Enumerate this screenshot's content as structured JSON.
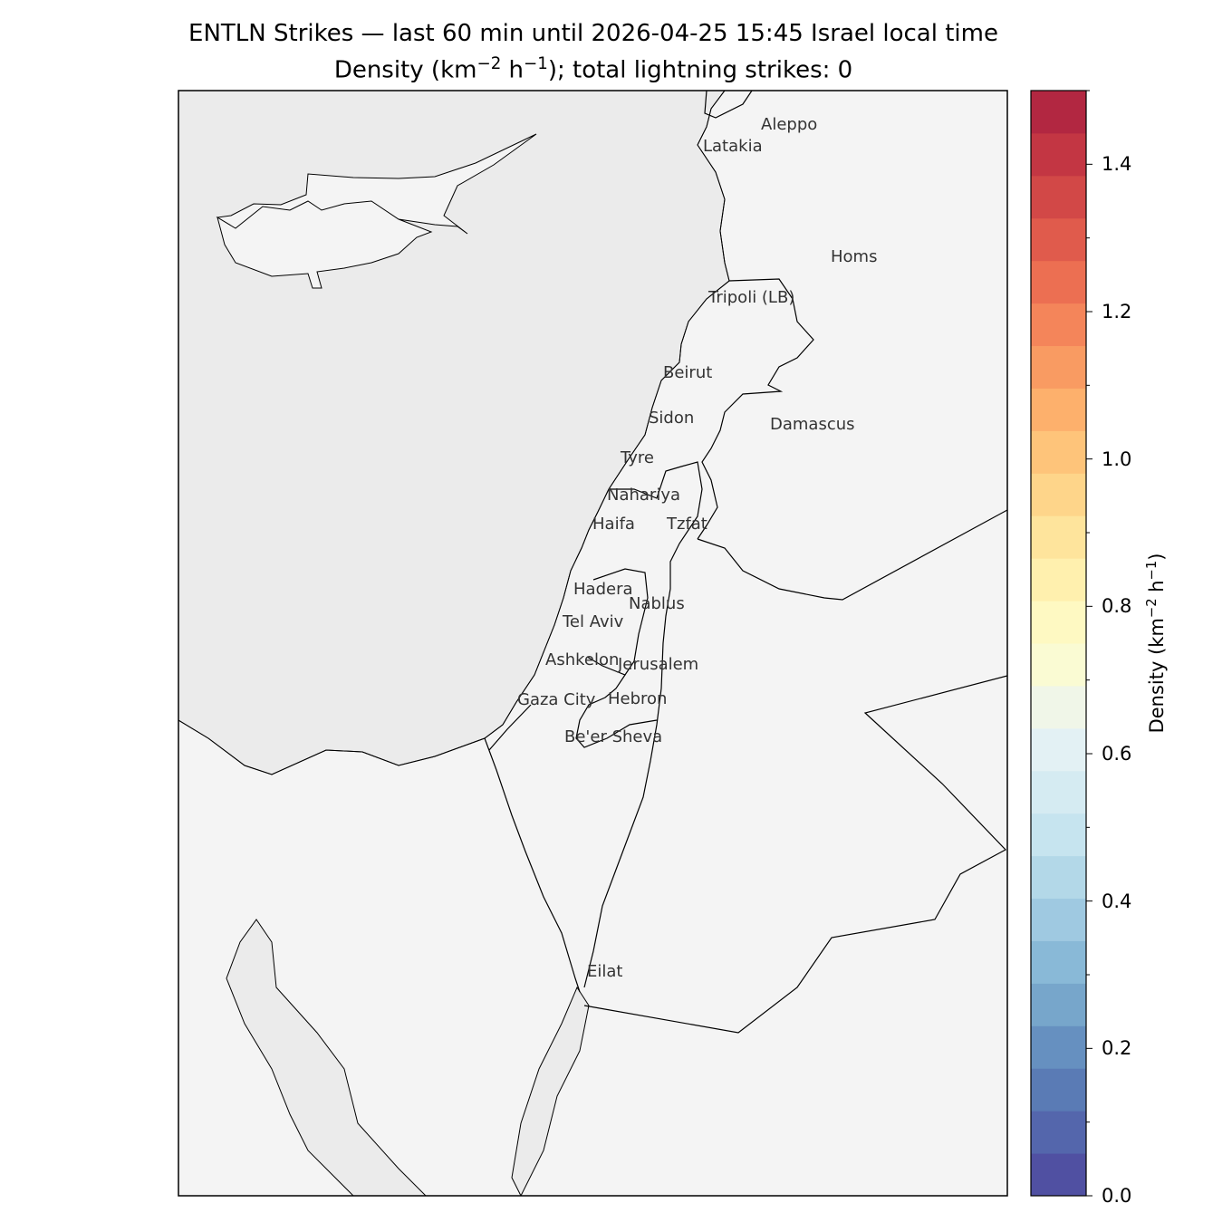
{
  "title": {
    "line1": "ENTLN Strikes — last 60 min until 2026-04-25 15:45 Israel local time",
    "line2_prefix": "Density (km",
    "line2_exp1": "−2",
    "line2_mid": " h",
    "line2_exp2": "−1",
    "line2_suffix": "); total lightning strikes: 0"
  },
  "colors": {
    "sea": "#ebebeb",
    "land": "#f4f4f4",
    "border": "#000000",
    "city_text": "#333333"
  },
  "cities": [
    {
      "name": "Aleppo"
    },
    {
      "name": "Latakia"
    },
    {
      "name": "Homs"
    },
    {
      "name": "Tripoli (LB)"
    },
    {
      "name": "Beirut"
    },
    {
      "name": "Sidon"
    },
    {
      "name": "Damascus"
    },
    {
      "name": "Tyre"
    },
    {
      "name": "Nahariya"
    },
    {
      "name": "Haifa"
    },
    {
      "name": "Tzfat"
    },
    {
      "name": "Hadera"
    },
    {
      "name": "Nablus"
    },
    {
      "name": "Tel Aviv"
    },
    {
      "name": "Ashkelon"
    },
    {
      "name": "Jerusalem"
    },
    {
      "name": "Gaza City"
    },
    {
      "name": "Hebron"
    },
    {
      "name": "Be'er Sheva"
    },
    {
      "name": "Eilat"
    }
  ],
  "colorbar": {
    "label_prefix": "Density (km",
    "label_exp1": "−2",
    "label_mid": " h",
    "label_exp2": "−1",
    "label_suffix": ")",
    "min": 0.0,
    "max": 1.5,
    "tick_labels": [
      "0.0",
      "0.2",
      "0.4",
      "0.6",
      "0.8",
      "1.0",
      "1.2",
      "1.4"
    ],
    "colors": [
      "#5050a2",
      "#5466ac",
      "#5a7bb5",
      "#6690c0",
      "#77a6cb",
      "#89b9d7",
      "#9fc9e1",
      "#b3d8e8",
      "#c6e4ef",
      "#d5ebf2",
      "#e3f1f4",
      "#f0f6e8",
      "#fafbd3",
      "#fef9c2",
      "#fff0ae",
      "#fee49c",
      "#fed58a",
      "#fec47a",
      "#fdb06c",
      "#f99b62",
      "#f4855a",
      "#ec6f52",
      "#e05b4c",
      "#d24847",
      "#c33643",
      "#b22741"
    ]
  }
}
